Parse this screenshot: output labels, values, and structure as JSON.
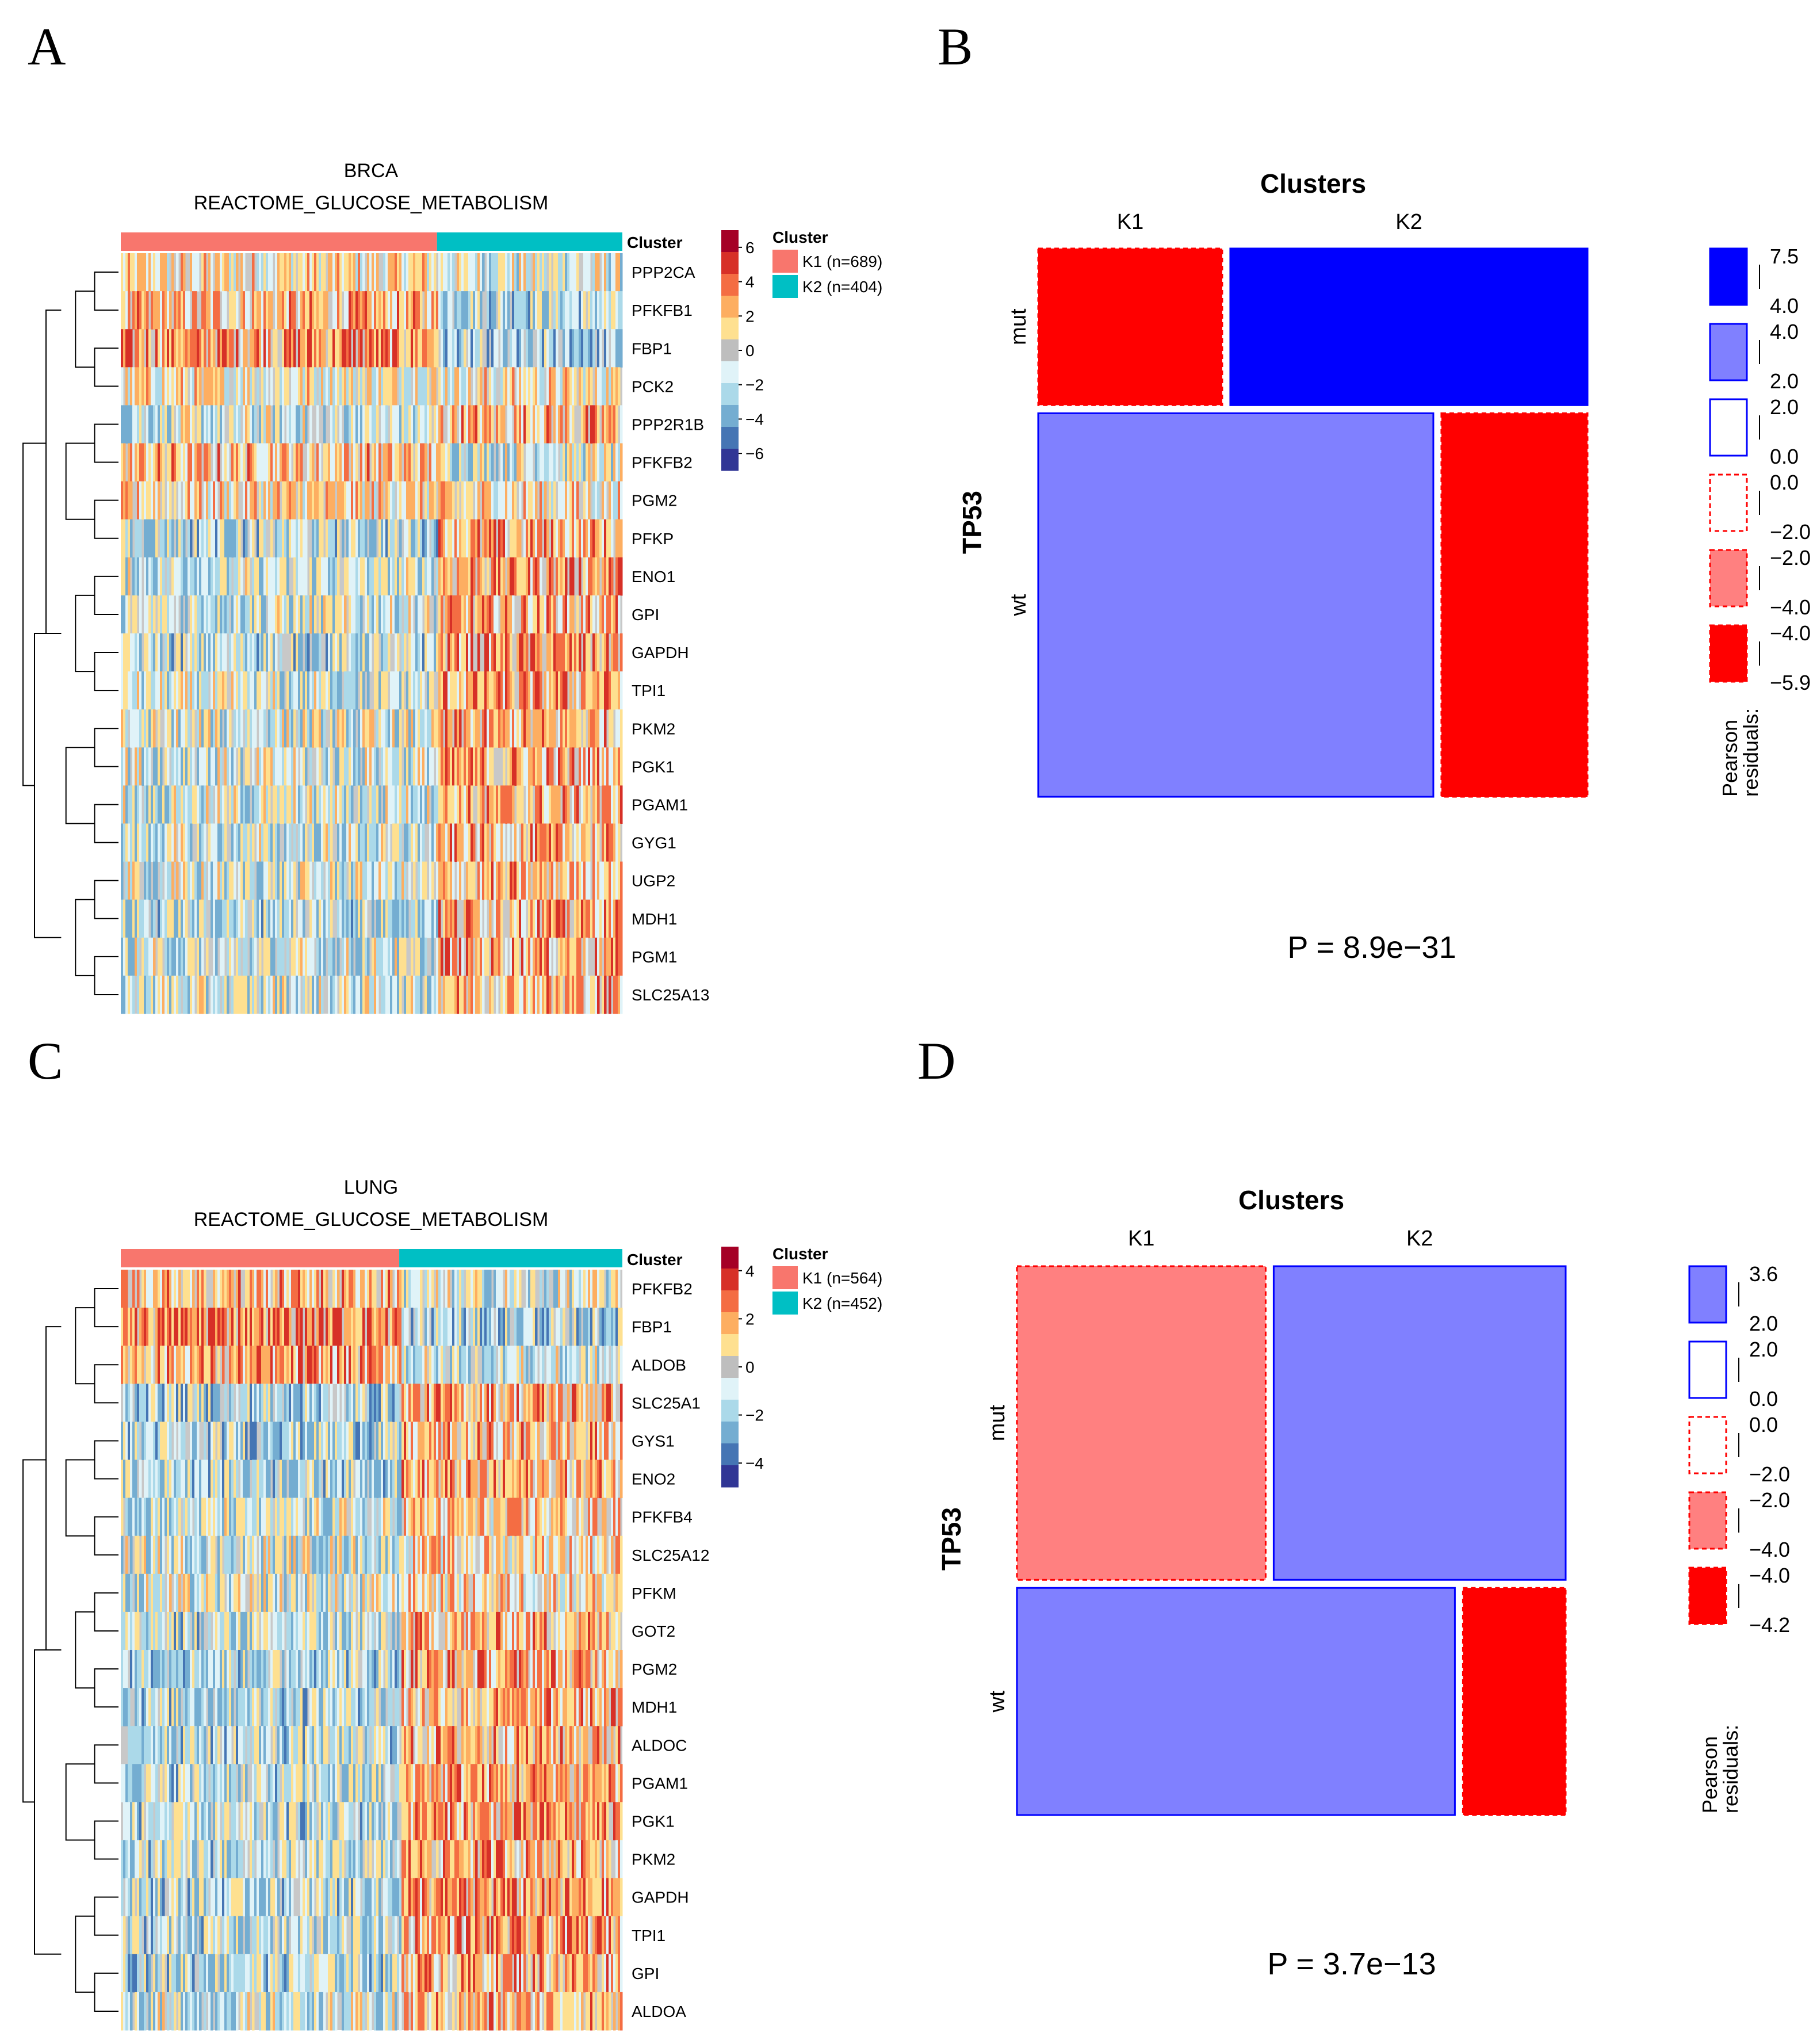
{
  "panels": {
    "A": "A",
    "B": "B",
    "C": "C",
    "D": "D"
  },
  "colors": {
    "k1": "#F8766D",
    "k2": "#00BFC4",
    "strong_pos": "#0000FF",
    "mod_pos": "#8080FF",
    "mod_neg": "#FF8080",
    "strong_neg": "#FF0000",
    "heat_scale": [
      "#A50026",
      "#D73027",
      "#F46D43",
      "#FDAE61",
      "#FEE090",
      "#BEBEBE",
      "#E0F3F8",
      "#ABD9E9",
      "#74ADD1",
      "#4575B4",
      "#313695"
    ]
  },
  "chart_data": [
    {
      "id": "A",
      "type": "heatmap",
      "title": "BRCA",
      "subtitle": "REACTOME_GLUCOSE_METABOLISM",
      "annotation_label": "Cluster",
      "clusters": [
        {
          "name": "K1",
          "n": 689,
          "label": "K1 (n=689)"
        },
        {
          "name": "K2",
          "n": 404,
          "label": "K2 (n=404)"
        }
      ],
      "legend_title": "Cluster",
      "color_scale": {
        "min": -7,
        "max": 7,
        "ticks": [
          "6",
          "4",
          "2",
          "0",
          "−2",
          "−4",
          "−6"
        ]
      },
      "genes": [
        "PPP2CA",
        "PFKFB1",
        "FBP1",
        "PCK2",
        "PPP2R1B",
        "PFKFB2",
        "PGM2",
        "PFKP",
        "ENO1",
        "GPI",
        "GAPDH",
        "TPI1",
        "PKM2",
        "PGK1",
        "PGAM1",
        "GYG1",
        "UGP2",
        "MDH1",
        "PGM1",
        "SLC25A13"
      ],
      "k1_bias": [
        0.2,
        0.5,
        0.9,
        0.1,
        -0.4,
        0.5,
        0.3,
        -0.5,
        -0.4,
        -0.3,
        -0.5,
        -0.4,
        -0.3,
        -0.3,
        -0.3,
        -0.4,
        -0.3,
        -0.5,
        -0.4,
        -0.3
      ],
      "k2_bias": [
        -0.2,
        -0.5,
        -0.9,
        0.1,
        0.6,
        -0.2,
        0.2,
        0.6,
        0.8,
        0.6,
        0.8,
        0.7,
        0.6,
        0.6,
        0.6,
        0.5,
        0.5,
        0.7,
        0.7,
        0.6
      ]
    },
    {
      "id": "B",
      "type": "mosaic",
      "title": "Clusters",
      "col_labels": [
        "K1",
        "K2"
      ],
      "row_title": "TP53",
      "row_labels": [
        "mut",
        "wt"
      ],
      "cells": [
        {
          "row": "mut",
          "col": "K1",
          "residual": -5.9
        },
        {
          "row": "mut",
          "col": "K2",
          "residual": 7.5
        },
        {
          "row": "wt",
          "col": "K1",
          "residual": 3.6
        },
        {
          "row": "wt",
          "col": "K2",
          "residual": -4.9
        }
      ],
      "row_proportions": [
        0.29,
        0.71
      ],
      "col_split_by_row": [
        0.34,
        0.73
      ],
      "legend_title": "Pearson\nresiduals:",
      "legend_title_lines": [
        "Pearson",
        "residuals:"
      ],
      "legend": [
        {
          "style": "strong_pos",
          "top": "7.5",
          "bottom": "4.0"
        },
        {
          "style": "mod_pos",
          "top": "4.0",
          "bottom": "2.0"
        },
        {
          "style": "weak_pos",
          "top": "2.0",
          "bottom": "0.0"
        },
        {
          "style": "weak_neg",
          "top": "0.0",
          "bottom": "−2.0"
        },
        {
          "style": "mod_neg",
          "top": "−2.0",
          "bottom": "−4.0"
        },
        {
          "style": "strong_neg",
          "top": "−4.0",
          "bottom": "−5.9"
        }
      ],
      "p_value": "P = 8.9e−31"
    },
    {
      "id": "C",
      "type": "heatmap",
      "title": "LUNG",
      "subtitle": "REACTOME_GLUCOSE_METABOLISM",
      "annotation_label": "Cluster",
      "clusters": [
        {
          "name": "K1",
          "n": 564,
          "label": "K1 (n=564)"
        },
        {
          "name": "K2",
          "n": 452,
          "label": "K2 (n=452)"
        }
      ],
      "legend_title": "Cluster",
      "color_scale": {
        "min": -5,
        "max": 5,
        "ticks": [
          "4",
          "2",
          "0",
          "−2",
          "−4"
        ]
      },
      "genes": [
        "PFKFB2",
        "FBP1",
        "ALDOB",
        "SLC25A1",
        "GYS1",
        "ENO2",
        "PFKFB4",
        "SLC25A12",
        "PFKM",
        "GOT2",
        "PGM2",
        "MDH1",
        "ALDOC",
        "PGAM1",
        "PGK1",
        "PKM2",
        "GAPDH",
        "TPI1",
        "GPI",
        "ALDOA"
      ],
      "k1_bias": [
        0.6,
        1.1,
        0.7,
        -0.6,
        -0.6,
        -0.5,
        -0.4,
        -0.3,
        -0.3,
        -0.5,
        -0.5,
        -0.5,
        -0.5,
        -0.5,
        -0.5,
        -0.5,
        -0.5,
        -0.5,
        -0.5,
        -0.4
      ],
      "k2_bias": [
        -0.3,
        -0.7,
        -0.4,
        0.7,
        0.5,
        0.6,
        0.4,
        0.3,
        0.3,
        0.6,
        0.7,
        0.6,
        0.7,
        0.8,
        0.8,
        0.8,
        0.8,
        0.8,
        0.7,
        0.6
      ]
    },
    {
      "id": "D",
      "type": "mosaic",
      "title": "Clusters",
      "col_labels": [
        "K1",
        "K2"
      ],
      "row_title": "TP53",
      "row_labels": [
        "mut",
        "wt"
      ],
      "cells": [
        {
          "row": "mut",
          "col": "K1",
          "residual": -3.0
        },
        {
          "row": "mut",
          "col": "K2",
          "residual": 3.6
        },
        {
          "row": "wt",
          "col": "K1",
          "residual": 2.9
        },
        {
          "row": "wt",
          "col": "K2",
          "residual": -4.2
        }
      ],
      "row_proportions": [
        0.58,
        0.42
      ],
      "col_split_by_row": [
        0.46,
        0.81
      ],
      "legend_title": "Pearson\nresiduals:",
      "legend_title_lines": [
        "Pearson",
        "residuals:"
      ],
      "legend": [
        {
          "style": "mod_pos",
          "top": "3.6",
          "bottom": "2.0"
        },
        {
          "style": "weak_pos",
          "top": "2.0",
          "bottom": "0.0"
        },
        {
          "style": "weak_neg",
          "top": "0.0",
          "bottom": "−2.0"
        },
        {
          "style": "mod_neg",
          "top": "−2.0",
          "bottom": "−4.0"
        },
        {
          "style": "strong_neg",
          "top": "−4.0",
          "bottom": "−4.2"
        }
      ],
      "p_value": "P = 3.7e−13"
    }
  ]
}
